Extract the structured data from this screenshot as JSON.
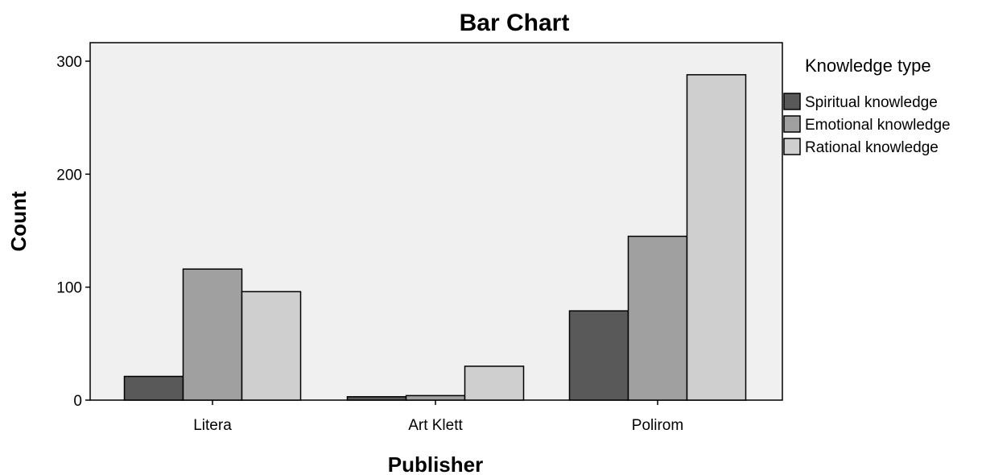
{
  "chart_data": {
    "type": "bar",
    "title": "Bar Chart",
    "xlabel": "Publisher",
    "ylabel": "Count",
    "categories": [
      "Litera",
      "Art Klett",
      "Polirom"
    ],
    "series": [
      {
        "name": "Spiritual knowledge",
        "values": [
          21,
          3,
          79
        ],
        "color": "#595959"
      },
      {
        "name": "Emotional knowledge",
        "values": [
          116,
          4,
          145
        ],
        "color": "#a0a0a0"
      },
      {
        "name": "Rational knowledge",
        "values": [
          96,
          30,
          288
        ],
        "color": "#cfcfcf"
      }
    ],
    "ylim": [
      0,
      300
    ],
    "yticks": [
      "0",
      "100",
      "200",
      "300"
    ],
    "grid": false,
    "legend": {
      "title": "Knowledge type",
      "placement": "right"
    },
    "plot_background": "#f0f0f0"
  }
}
